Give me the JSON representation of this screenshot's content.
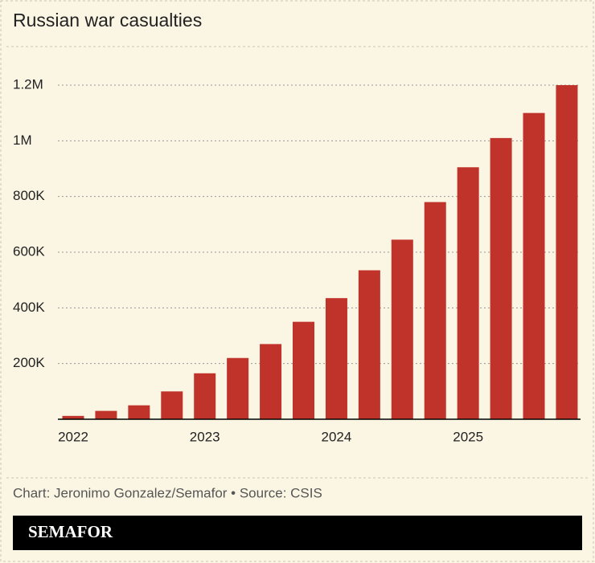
{
  "chart_data": {
    "type": "bar",
    "title": "Russian war casualties",
    "categories": [
      "2022",
      null,
      null,
      null,
      "2023",
      null,
      null,
      null,
      "2024",
      null,
      null,
      null,
      "2025",
      null,
      null,
      null
    ],
    "values": [
      12000,
      30000,
      50000,
      100000,
      165000,
      220000,
      270000,
      350000,
      435000,
      535000,
      645000,
      780000,
      905000,
      1010000,
      1100000,
      1200000
    ],
    "color": "#c0332a",
    "ylim": [
      0,
      1200000
    ],
    "yticks": [
      {
        "value": 200000,
        "label": "200K"
      },
      {
        "value": 400000,
        "label": "400K"
      },
      {
        "value": 600000,
        "label": "600K"
      },
      {
        "value": 800000,
        "label": "800K"
      },
      {
        "value": 1000000,
        "label": "1M"
      },
      {
        "value": 1200000,
        "label": "1.2M"
      }
    ],
    "grid": true,
    "source": "Chart: Jeronimo Gonzalez/Semafor • Source: CSIS",
    "brand": "SEMAFOR"
  }
}
